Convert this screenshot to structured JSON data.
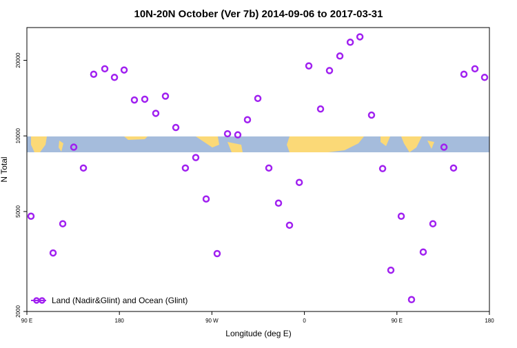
{
  "chart_data": {
    "type": "scatter",
    "title": "10N-20N October (Ver 7b)   2014-09-06 to 2017-03-31",
    "x_label": "Longitude (deg E)",
    "y_label": "N Total",
    "x": [
      94,
      115.5,
      124.9,
      135.6,
      145,
      155,
      165.8,
      175.2,
      184.6,
      194.6,
      204.7,
      215.4,
      224.8,
      234.9,
      244.2,
      254.3,
      264.4,
      275.1,
      285.2,
      295.2,
      304.6,
      314.7,
      325.4,
      334.8,
      345.5,
      355,
      364.3,
      375.7,
      384.4,
      394.5,
      404.6,
      414,
      425.3,
      436.1,
      444.1,
      454.2,
      464.2,
      475.6,
      485,
      495.8,
      505.1,
      515.2,
      525.9,
      535.3
    ],
    "series": [
      {
        "name": "Land (Nadir&Glint) and Ocean (Glint)",
        "color": "#a020f0",
        "values": [
          4790,
          3420,
          4470,
          9020,
          7450,
          17600,
          18500,
          17100,
          18300,
          13900,
          14000,
          12300,
          14400,
          10800,
          7450,
          8200,
          5610,
          3400,
          10200,
          10100,
          11600,
          14100,
          7450,
          5400,
          4410,
          6530,
          19000,
          12800,
          18200,
          20800,
          23600,
          24800,
          12100,
          7410,
          2920,
          4790,
          2230,
          3450,
          4470,
          9020,
          7450,
          17600,
          18500,
          17100
        ]
      }
    ],
    "xlim": [
      90,
      540
    ],
    "xticks": [
      {
        "value": 90,
        "label": "90 E"
      },
      {
        "value": 180,
        "label": "180"
      },
      {
        "value": 270,
        "label": "90 W"
      },
      {
        "value": 360,
        "label": "0"
      },
      {
        "value": 450,
        "label": "90 E"
      },
      {
        "value": 540,
        "label": "180"
      }
    ],
    "ylim": [
      2000,
      27000
    ],
    "yticks": [
      2000,
      5000,
      10000,
      20000
    ],
    "ylog": true,
    "legend": "lower left"
  }
}
